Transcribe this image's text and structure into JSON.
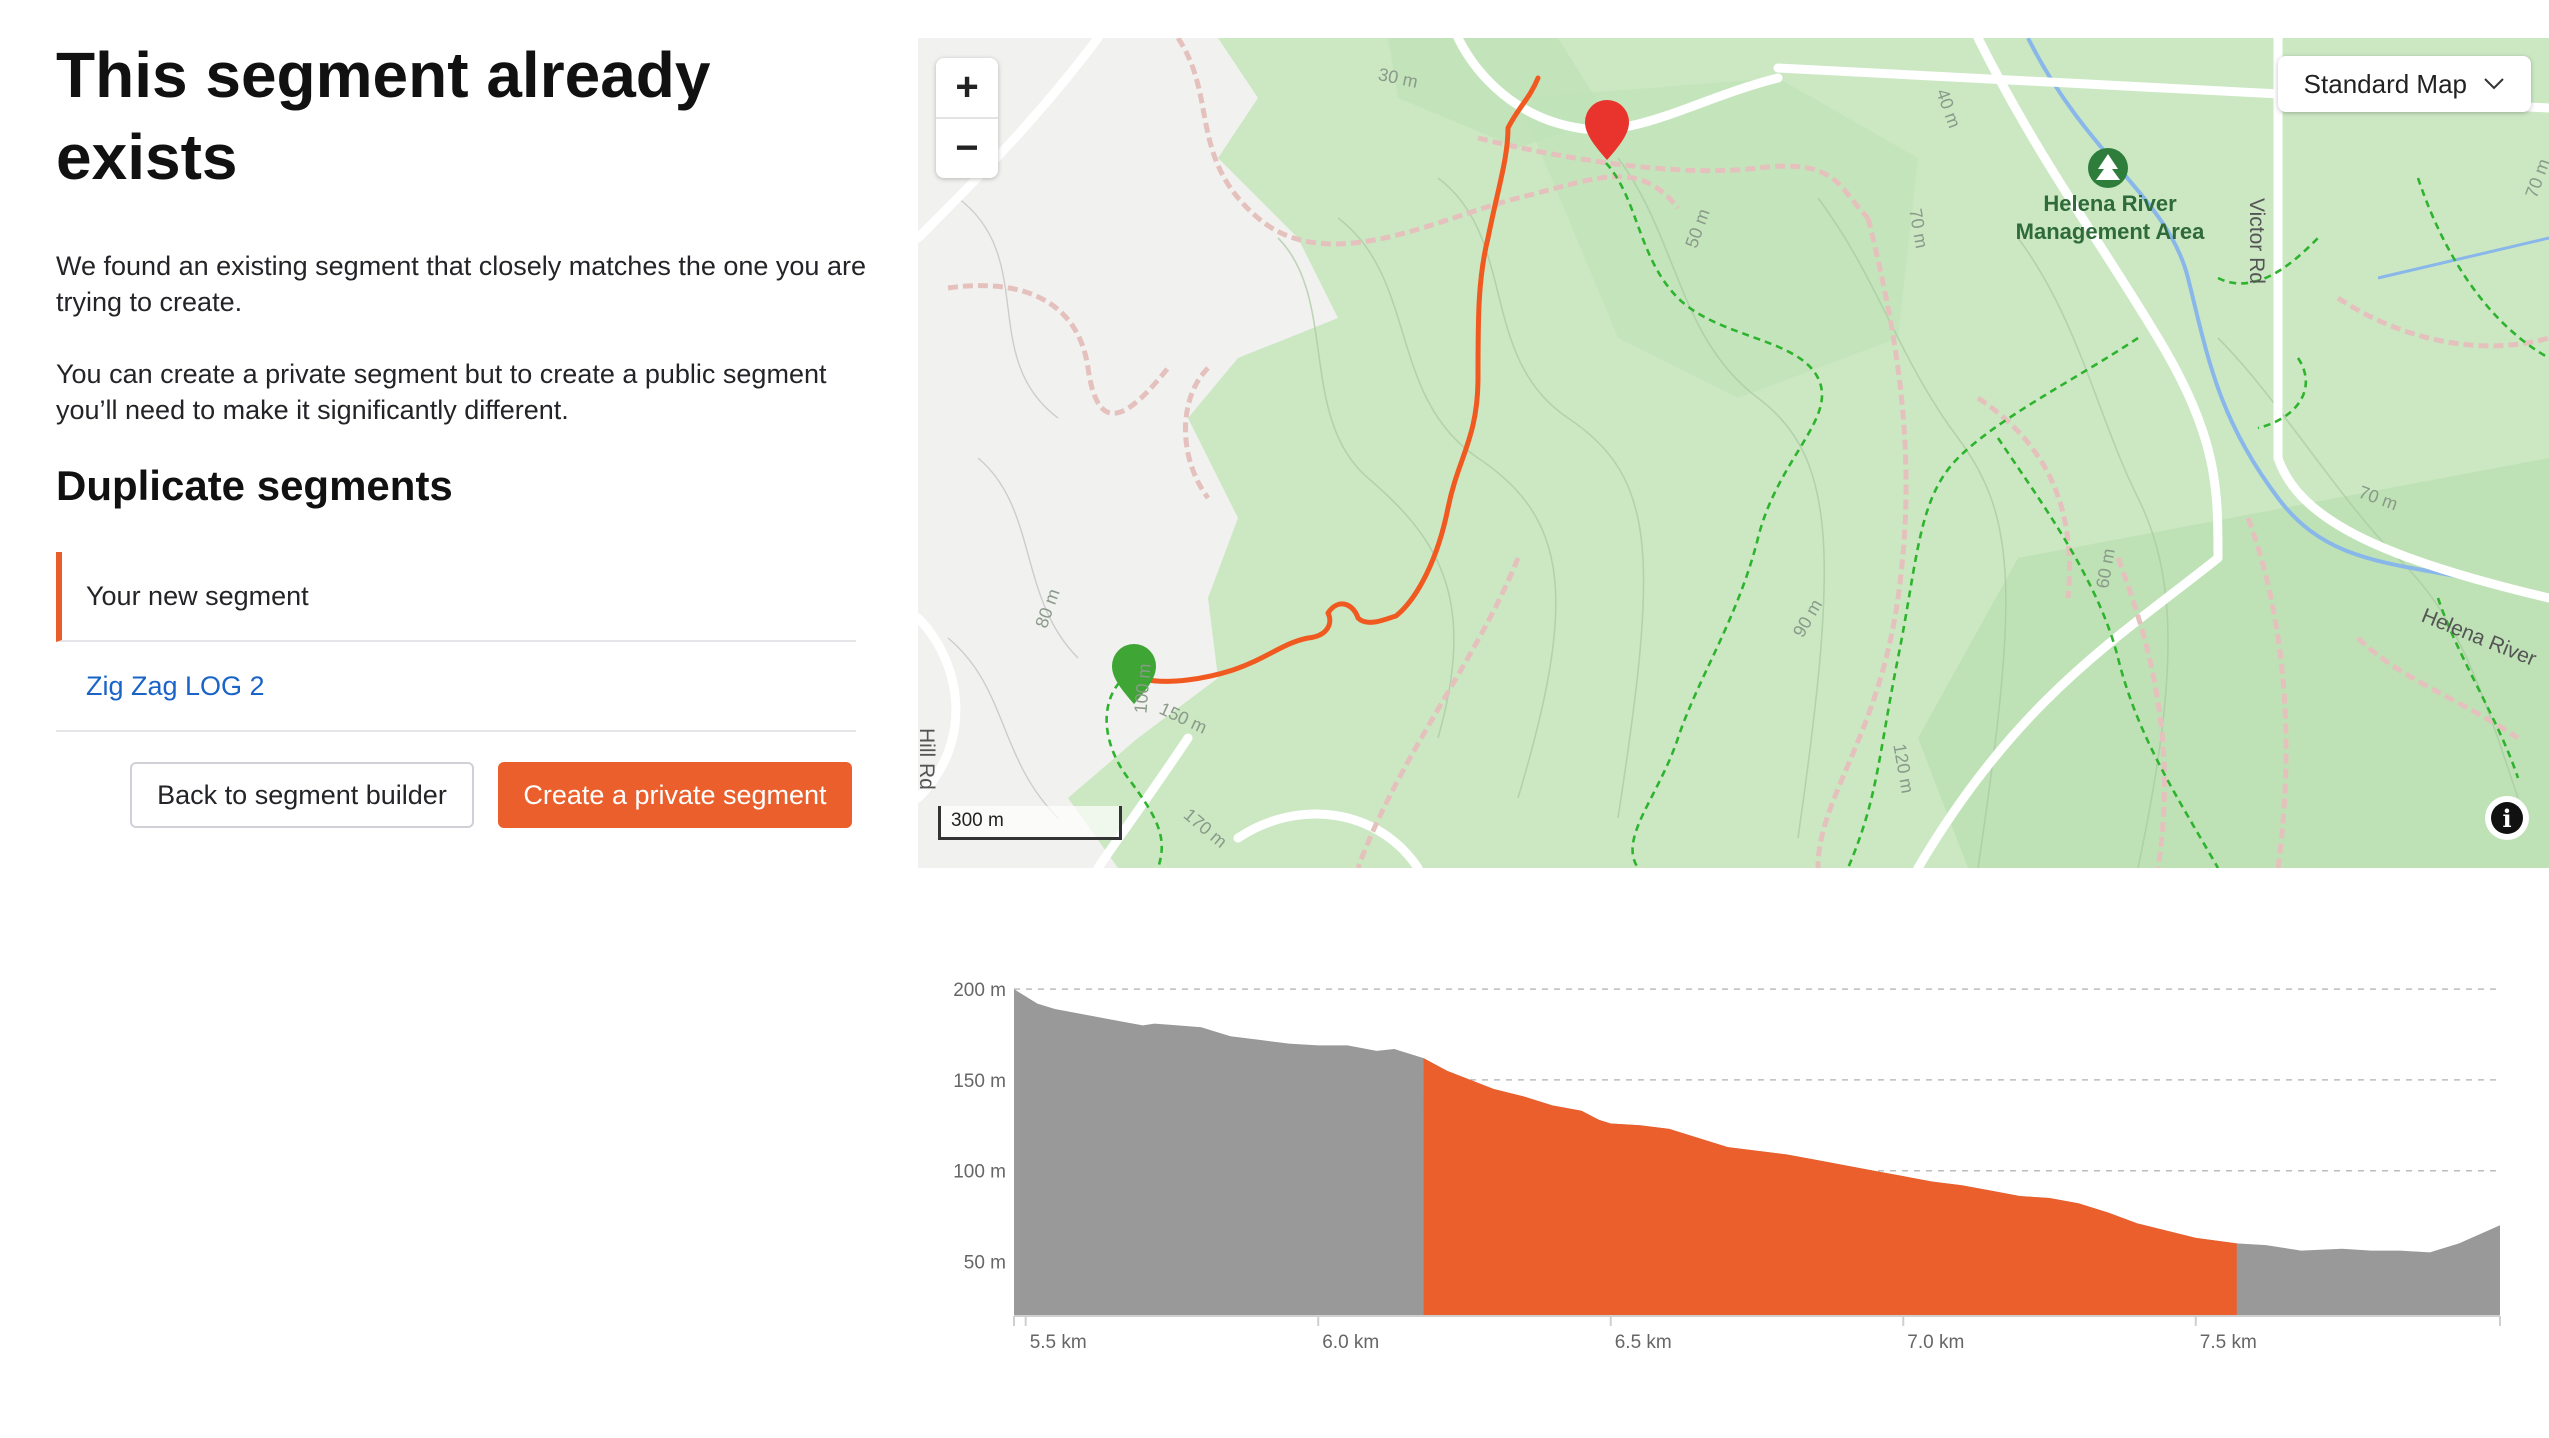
{
  "header": {
    "title": "This segment already exists"
  },
  "intro": {
    "p1": "We found an existing segment that closely matches the one you are trying to create.",
    "p2": "You can create a private segment but to create a public segment you’ll need to make it significantly different."
  },
  "duplicates": {
    "heading": "Duplicate segments",
    "items": [
      {
        "label": "Your new segment",
        "active": true
      },
      {
        "label": "Zig Zag LOG 2",
        "active": false
      }
    ]
  },
  "buttons": {
    "back": "Back to segment builder",
    "create_private": "Create a private segment"
  },
  "map": {
    "zoom_in": "+",
    "zoom_out": "−",
    "map_type": "Standard Map",
    "scale": "300 m",
    "poi": "Helena River Management Area",
    "road_labels": [
      "Victor Rd",
      "Helena River",
      "Hill Rd"
    ],
    "contour_labels": [
      "30 m",
      "40 m",
      "50 m",
      "70 m",
      "80 m",
      "90 m",
      "150 m",
      "170 m",
      "60 m",
      "120 m",
      "100 m",
      "70 m",
      "70 m"
    ],
    "info": "i",
    "colors": {
      "park": "#c9e8c0",
      "route": "#f05a20",
      "trail": "#2fb52f",
      "start": "#3fa535",
      "end": "#e8342c",
      "water": "#7fb0e8"
    }
  },
  "chart_data": {
    "type": "area",
    "title": "",
    "xlabel": "",
    "ylabel": "",
    "x_ticks": [
      "5.5 km",
      "6.0 km",
      "6.5 km",
      "7.0 km",
      "7.5 km"
    ],
    "x_tick_values": [
      5.5,
      6.0,
      6.5,
      7.0,
      7.5
    ],
    "y_ticks": [
      "200 m",
      "150 m",
      "100 m",
      "50 m"
    ],
    "y_tick_values": [
      200,
      150,
      100,
      50
    ],
    "xlim": [
      5.48,
      8.02
    ],
    "ylim": [
      20,
      205
    ],
    "grid": true,
    "highlight_range": [
      6.18,
      7.57
    ],
    "colors": {
      "base": "#999999",
      "highlight": "#ea5f2b"
    },
    "series": [
      {
        "x": [
          5.48,
          5.52,
          5.55,
          5.6,
          5.65,
          5.7,
          5.72,
          5.76,
          5.8,
          5.85,
          5.9,
          5.95,
          6.0,
          6.05,
          6.1,
          6.13,
          6.18,
          6.22,
          6.26,
          6.3,
          6.35,
          6.4,
          6.45,
          6.48,
          6.5,
          6.55,
          6.6,
          6.63,
          6.7,
          6.75,
          6.8,
          6.85,
          6.9,
          6.95,
          7.0,
          7.05,
          7.1,
          7.15,
          7.2,
          7.25,
          7.3,
          7.35,
          7.4,
          7.45,
          7.5,
          7.57,
          7.62,
          7.68,
          7.75,
          7.8,
          7.85,
          7.9,
          7.95,
          8.02
        ],
        "y": [
          200,
          192,
          189,
          186,
          183,
          180,
          181,
          180,
          179,
          174,
          172,
          170,
          169,
          169,
          166,
          167,
          162,
          155,
          150,
          145,
          141,
          136,
          133,
          128,
          126,
          125,
          123,
          120,
          113,
          111,
          109,
          106,
          103,
          100,
          97,
          94,
          92,
          89,
          86,
          85,
          82,
          77,
          71,
          67,
          63,
          60,
          59,
          56,
          57,
          56,
          56,
          55,
          60,
          70
        ]
      }
    ]
  }
}
